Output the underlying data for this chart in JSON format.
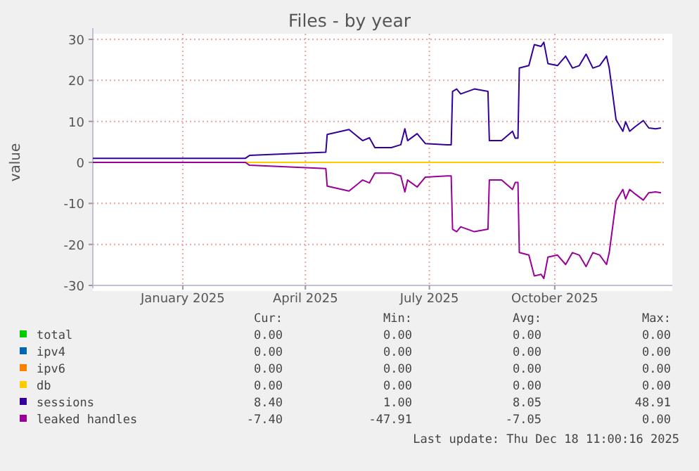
{
  "chart_data": {
    "type": "line",
    "title": "Files - by year",
    "ylabel": "value",
    "xlim": [
      "2024-10-27",
      "2025-12-18"
    ],
    "xticks": [
      {
        "value": "2025-01-01",
        "label": "January 2025"
      },
      {
        "value": "2025-04-01",
        "label": "April 2025"
      },
      {
        "value": "2025-07-01",
        "label": "July 2025"
      },
      {
        "value": "2025-10-01",
        "label": "October 2025"
      }
    ],
    "ylim": [
      -30,
      30
    ],
    "yticks": [
      -30,
      -20,
      -10,
      0,
      10,
      20,
      30
    ],
    "grid": true,
    "legend": "bottom",
    "series": [
      {
        "name": "total",
        "color": "#00cc00"
      },
      {
        "name": "ipv4",
        "color": "#0066b3"
      },
      {
        "name": "ipv6",
        "color": "#ff8000"
      },
      {
        "name": "db",
        "color": "#ffcc00",
        "x": [
          "2024-10-27",
          "2025-12-18"
        ],
        "values": [
          0,
          0
        ]
      },
      {
        "name": "sessions",
        "color": "#330099",
        "x": [
          "2024-10-27",
          "2025-02-16",
          "2025-02-19",
          "2025-04-16",
          "2025-04-17",
          "2025-05-03",
          "2025-05-13",
          "2025-05-18",
          "2025-05-22",
          "2025-06-03",
          "2025-06-10",
          "2025-06-13",
          "2025-06-15",
          "2025-06-22",
          "2025-06-28",
          "2025-07-14",
          "2025-07-17",
          "2025-07-18",
          "2025-07-21",
          "2025-07-24",
          "2025-08-03",
          "2025-08-13",
          "2025-08-14",
          "2025-08-23",
          "2025-08-31",
          "2025-09-02",
          "2025-09-04",
          "2025-09-05",
          "2025-09-12",
          "2025-09-16",
          "2025-09-21",
          "2025-09-23",
          "2025-09-26",
          "2025-10-03",
          "2025-10-09",
          "2025-10-14",
          "2025-10-19",
          "2025-10-24",
          "2025-10-29",
          "2025-11-03",
          "2025-11-08",
          "2025-11-10",
          "2025-11-15",
          "2025-11-20",
          "2025-11-22",
          "2025-11-25",
          "2025-11-29",
          "2025-12-05",
          "2025-12-09",
          "2025-12-14",
          "2025-12-18"
        ],
        "values": [
          1,
          1,
          1.7,
          2.5,
          6.8,
          8,
          5.3,
          6,
          3.6,
          3.6,
          4.3,
          8.2,
          5.3,
          7,
          4.6,
          4.3,
          4.3,
          17.3,
          17.9,
          16.7,
          17.9,
          17.3,
          5.3,
          5.3,
          7.6,
          5.9,
          5.9,
          23,
          23.6,
          28.7,
          28.3,
          29.3,
          24.1,
          23.6,
          25.9,
          23,
          23.6,
          26.4,
          23,
          23.6,
          25.9,
          23,
          10.4,
          7.6,
          9.9,
          7.6,
          8.7,
          10.2,
          8.4,
          8.2,
          8.4
        ]
      },
      {
        "name": "leaked handles",
        "color": "#990099",
        "x": [
          "2024-10-27",
          "2025-02-16",
          "2025-02-19",
          "2025-04-16",
          "2025-04-17",
          "2025-05-03",
          "2025-05-13",
          "2025-05-18",
          "2025-05-22",
          "2025-06-03",
          "2025-06-10",
          "2025-06-13",
          "2025-06-15",
          "2025-06-22",
          "2025-06-28",
          "2025-07-14",
          "2025-07-17",
          "2025-07-18",
          "2025-07-21",
          "2025-07-24",
          "2025-08-03",
          "2025-08-13",
          "2025-08-14",
          "2025-08-23",
          "2025-08-31",
          "2025-09-02",
          "2025-09-04",
          "2025-09-05",
          "2025-09-12",
          "2025-09-16",
          "2025-09-21",
          "2025-09-23",
          "2025-09-26",
          "2025-10-03",
          "2025-10-09",
          "2025-10-14",
          "2025-10-19",
          "2025-10-24",
          "2025-10-29",
          "2025-11-03",
          "2025-11-08",
          "2025-11-10",
          "2025-11-15",
          "2025-11-20",
          "2025-11-22",
          "2025-11-25",
          "2025-11-29",
          "2025-12-05",
          "2025-12-09",
          "2025-12-14",
          "2025-12-18"
        ],
        "values": [
          0,
          0,
          -0.7,
          -1.5,
          -5.8,
          -7,
          -4.3,
          -5,
          -2.6,
          -2.6,
          -3.3,
          -7.2,
          -4.3,
          -6,
          -3.6,
          -3.3,
          -3.3,
          -16.3,
          -16.9,
          -15.7,
          -16.9,
          -16.3,
          -4.3,
          -4.3,
          -6.6,
          -4.9,
          -4.9,
          -22,
          -22.6,
          -27.7,
          -27.3,
          -28.3,
          -23.1,
          -22.6,
          -24.9,
          -22,
          -22.6,
          -25.4,
          -22,
          -22.6,
          -24.9,
          -22,
          -9.4,
          -6.6,
          -8.9,
          -6.6,
          -7.7,
          -9.2,
          -7.4,
          -7.2,
          -7.4
        ]
      }
    ],
    "annotations": [
      "Cur:",
      "Min:",
      "Avg:",
      "Max:",
      "0.00",
      "0.00",
      "0.00",
      "0.00",
      "0.00",
      "0.00",
      "0.00",
      "0.00",
      "0.00",
      "0.00",
      "0.00",
      "0.00",
      "0.00",
      "0.00",
      "0.00",
      "0.00",
      "8.40",
      "1.00",
      "8.05",
      "48.91",
      "-7.40",
      "-47.91",
      "-7.05",
      "0.00",
      "Last update: Thu Dec 18 11:00:16 2025"
    ]
  }
}
